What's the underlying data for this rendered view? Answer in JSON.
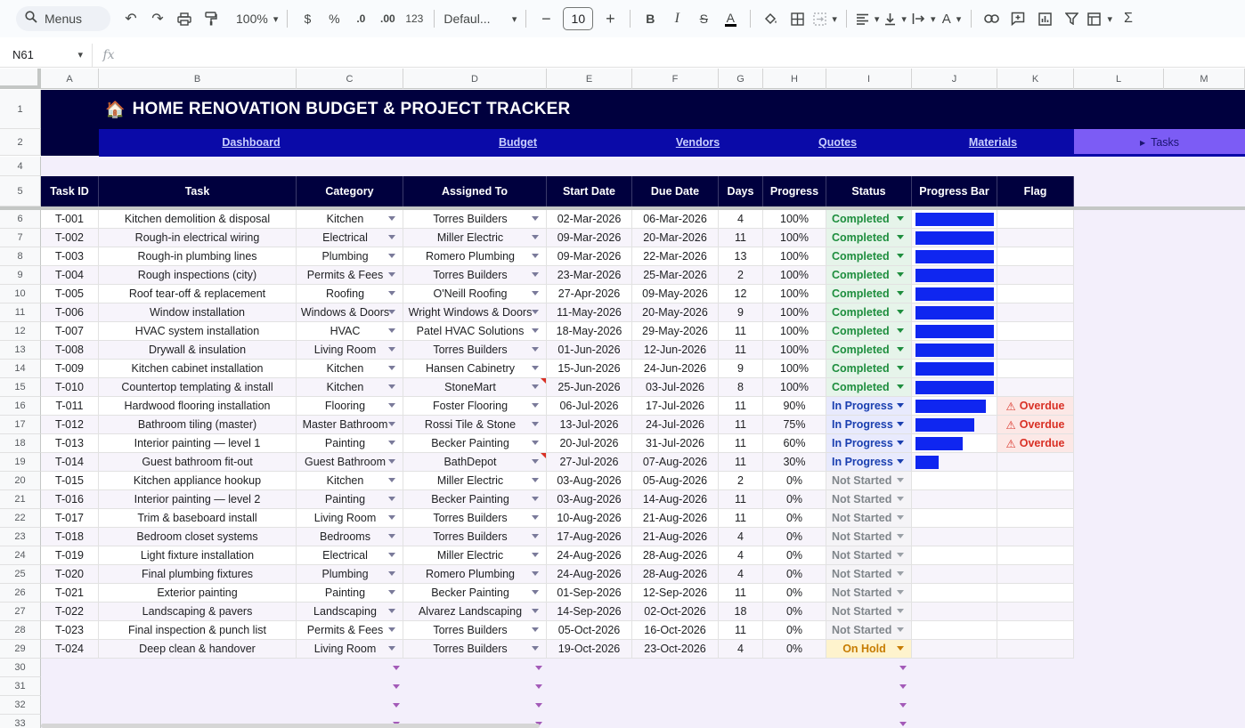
{
  "toolbar": {
    "menus_label": "Menus",
    "zoom": "100%",
    "currency": "$",
    "percent": "%",
    "dec_decrease": ".0",
    "dec_increase": ".00",
    "number_format": "123",
    "font_family": "Defaul...",
    "font_size": "10",
    "minus": "−",
    "plus": "+",
    "bold": "B",
    "italic": "I",
    "strike": "S",
    "text_color": "A",
    "text_color_hex": "#000000",
    "sum": "Σ"
  },
  "formula_bar": {
    "cell_ref": "N61",
    "fx": "fx",
    "value": ""
  },
  "columns": [
    "A",
    "B",
    "C",
    "D",
    "E",
    "F",
    "G",
    "H",
    "I",
    "J",
    "K",
    "L",
    "M"
  ],
  "row_numbers": [
    "1",
    "2",
    "4",
    "5",
    "6",
    "7",
    "8",
    "9",
    "10",
    "11",
    "12",
    "13",
    "14",
    "15",
    "16",
    "17",
    "18",
    "19",
    "20",
    "21",
    "22",
    "23",
    "24",
    "25",
    "26",
    "27",
    "28",
    "29",
    "30",
    "31",
    "32",
    "33"
  ],
  "sheet": {
    "title_emoji": "🏠",
    "title": "HOME RENOVATION BUDGET & PROJECT TRACKER",
    "nav": [
      {
        "label": "Dashboard"
      },
      {
        "label": "Budget"
      },
      {
        "label": "Vendors"
      },
      {
        "label": "Quotes"
      },
      {
        "label": "Materials"
      }
    ],
    "nav_active": "Tasks",
    "headers": [
      "Task ID",
      "Task",
      "Category",
      "Assigned To",
      "Start Date",
      "Due Date",
      "Days",
      "Progress",
      "Status",
      "Progress Bar",
      "Flag"
    ]
  },
  "colors": {
    "title_bg": "#00003e",
    "nav_bg": "#0a0aa8",
    "nav_active_bg": "#7c5cf5",
    "progress_bar": "#0f26f0",
    "completed": "#1e8e3e",
    "in_progress": "#1a3fb0",
    "not_started": "#80868b",
    "on_hold": "#c77c02",
    "overdue": "#d93025"
  },
  "tasks": [
    {
      "id": "T-001",
      "task": "Kitchen demolition & disposal",
      "category": "Kitchen",
      "assigned": "Torres Builders",
      "start": "02-Mar-2026",
      "due": "06-Mar-2026",
      "days": "4",
      "progress": "100%",
      "progress_value": 1.0,
      "status": "Completed",
      "flag": ""
    },
    {
      "id": "T-002",
      "task": "Rough-in electrical wiring",
      "category": "Electrical",
      "assigned": "Miller Electric",
      "start": "09-Mar-2026",
      "due": "20-Mar-2026",
      "days": "11",
      "progress": "100%",
      "progress_value": 1.0,
      "status": "Completed",
      "flag": ""
    },
    {
      "id": "T-003",
      "task": "Rough-in plumbing lines",
      "category": "Plumbing",
      "assigned": "Romero Plumbing",
      "start": "09-Mar-2026",
      "due": "22-Mar-2026",
      "days": "13",
      "progress": "100%",
      "progress_value": 1.0,
      "status": "Completed",
      "flag": ""
    },
    {
      "id": "T-004",
      "task": "Rough inspections (city)",
      "category": "Permits & Fees",
      "assigned": "Torres Builders",
      "start": "23-Mar-2026",
      "due": "25-Mar-2026",
      "days": "2",
      "progress": "100%",
      "progress_value": 1.0,
      "status": "Completed",
      "flag": ""
    },
    {
      "id": "T-005",
      "task": "Roof tear-off & replacement",
      "category": "Roofing",
      "assigned": "O'Neill Roofing",
      "start": "27-Apr-2026",
      "due": "09-May-2026",
      "days": "12",
      "progress": "100%",
      "progress_value": 1.0,
      "status": "Completed",
      "flag": ""
    },
    {
      "id": "T-006",
      "task": "Window installation",
      "category": "Windows & Doors",
      "assigned": "Wright Windows & Doors",
      "start": "11-May-2026",
      "due": "20-May-2026",
      "days": "9",
      "progress": "100%",
      "progress_value": 1.0,
      "status": "Completed",
      "flag": ""
    },
    {
      "id": "T-007",
      "task": "HVAC system installation",
      "category": "HVAC",
      "assigned": "Patel HVAC Solutions",
      "start": "18-May-2026",
      "due": "29-May-2026",
      "days": "11",
      "progress": "100%",
      "progress_value": 1.0,
      "status": "Completed",
      "flag": ""
    },
    {
      "id": "T-008",
      "task": "Drywall & insulation",
      "category": "Living Room",
      "assigned": "Torres Builders",
      "start": "01-Jun-2026",
      "due": "12-Jun-2026",
      "days": "11",
      "progress": "100%",
      "progress_value": 1.0,
      "status": "Completed",
      "flag": ""
    },
    {
      "id": "T-009",
      "task": "Kitchen cabinet installation",
      "category": "Kitchen",
      "assigned": "Hansen Cabinetry",
      "start": "15-Jun-2026",
      "due": "24-Jun-2026",
      "days": "9",
      "progress": "100%",
      "progress_value": 1.0,
      "status": "Completed",
      "flag": ""
    },
    {
      "id": "T-010",
      "task": "Countertop templating & install",
      "category": "Kitchen",
      "assigned": "StoneMart",
      "start": "25-Jun-2026",
      "due": "03-Jul-2026",
      "days": "8",
      "progress": "100%",
      "progress_value": 1.0,
      "status": "Completed",
      "flag": "",
      "note": true
    },
    {
      "id": "T-011",
      "task": "Hardwood flooring installation",
      "category": "Flooring",
      "assigned": "Foster Flooring",
      "start": "06-Jul-2026",
      "due": "17-Jul-2026",
      "days": "11",
      "progress": "90%",
      "progress_value": 0.9,
      "status": "In Progress",
      "flag": "Overdue"
    },
    {
      "id": "T-012",
      "task": "Bathroom tiling (master)",
      "category": "Master Bathroom",
      "assigned": "Rossi Tile & Stone",
      "start": "13-Jul-2026",
      "due": "24-Jul-2026",
      "days": "11",
      "progress": "75%",
      "progress_value": 0.75,
      "status": "In Progress",
      "flag": "Overdue"
    },
    {
      "id": "T-013",
      "task": "Interior painting — level 1",
      "category": "Painting",
      "assigned": "Becker Painting",
      "start": "20-Jul-2026",
      "due": "31-Jul-2026",
      "days": "11",
      "progress": "60%",
      "progress_value": 0.6,
      "status": "In Progress",
      "flag": "Overdue"
    },
    {
      "id": "T-014",
      "task": "Guest bathroom fit-out",
      "category": "Guest Bathroom",
      "assigned": "BathDepot",
      "start": "27-Jul-2026",
      "due": "07-Aug-2026",
      "days": "11",
      "progress": "30%",
      "progress_value": 0.3,
      "status": "In Progress",
      "flag": "",
      "note": true
    },
    {
      "id": "T-015",
      "task": "Kitchen appliance hookup",
      "category": "Kitchen",
      "assigned": "Miller Electric",
      "start": "03-Aug-2026",
      "due": "05-Aug-2026",
      "days": "2",
      "progress": "0%",
      "progress_value": 0,
      "status": "Not Started",
      "flag": ""
    },
    {
      "id": "T-016",
      "task": "Interior painting — level 2",
      "category": "Painting",
      "assigned": "Becker Painting",
      "start": "03-Aug-2026",
      "due": "14-Aug-2026",
      "days": "11",
      "progress": "0%",
      "progress_value": 0,
      "status": "Not Started",
      "flag": ""
    },
    {
      "id": "T-017",
      "task": "Trim & baseboard install",
      "category": "Living Room",
      "assigned": "Torres Builders",
      "start": "10-Aug-2026",
      "due": "21-Aug-2026",
      "days": "11",
      "progress": "0%",
      "progress_value": 0,
      "status": "Not Started",
      "flag": ""
    },
    {
      "id": "T-018",
      "task": "Bedroom closet systems",
      "category": "Bedrooms",
      "assigned": "Torres Builders",
      "start": "17-Aug-2026",
      "due": "21-Aug-2026",
      "days": "4",
      "progress": "0%",
      "progress_value": 0,
      "status": "Not Started",
      "flag": ""
    },
    {
      "id": "T-019",
      "task": "Light fixture installation",
      "category": "Electrical",
      "assigned": "Miller Electric",
      "start": "24-Aug-2026",
      "due": "28-Aug-2026",
      "days": "4",
      "progress": "0%",
      "progress_value": 0,
      "status": "Not Started",
      "flag": ""
    },
    {
      "id": "T-020",
      "task": "Final plumbing fixtures",
      "category": "Plumbing",
      "assigned": "Romero Plumbing",
      "start": "24-Aug-2026",
      "due": "28-Aug-2026",
      "days": "4",
      "progress": "0%",
      "progress_value": 0,
      "status": "Not Started",
      "flag": ""
    },
    {
      "id": "T-021",
      "task": "Exterior painting",
      "category": "Painting",
      "assigned": "Becker Painting",
      "start": "01-Sep-2026",
      "due": "12-Sep-2026",
      "days": "11",
      "progress": "0%",
      "progress_value": 0,
      "status": "Not Started",
      "flag": ""
    },
    {
      "id": "T-022",
      "task": "Landscaping & pavers",
      "category": "Landscaping",
      "assigned": "Alvarez Landscaping",
      "start": "14-Sep-2026",
      "due": "02-Oct-2026",
      "days": "18",
      "progress": "0%",
      "progress_value": 0,
      "status": "Not Started",
      "flag": ""
    },
    {
      "id": "T-023",
      "task": "Final inspection & punch list",
      "category": "Permits & Fees",
      "assigned": "Torres Builders",
      "start": "05-Oct-2026",
      "due": "16-Oct-2026",
      "days": "11",
      "progress": "0%",
      "progress_value": 0,
      "status": "Not Started",
      "flag": ""
    },
    {
      "id": "T-024",
      "task": "Deep clean & handover",
      "category": "Living Room",
      "assigned": "Torres Builders",
      "start": "19-Oct-2026",
      "due": "23-Oct-2026",
      "days": "4",
      "progress": "0%",
      "progress_value": 0,
      "status": "On Hold",
      "flag": ""
    }
  ],
  "flag_icon": "⚠"
}
